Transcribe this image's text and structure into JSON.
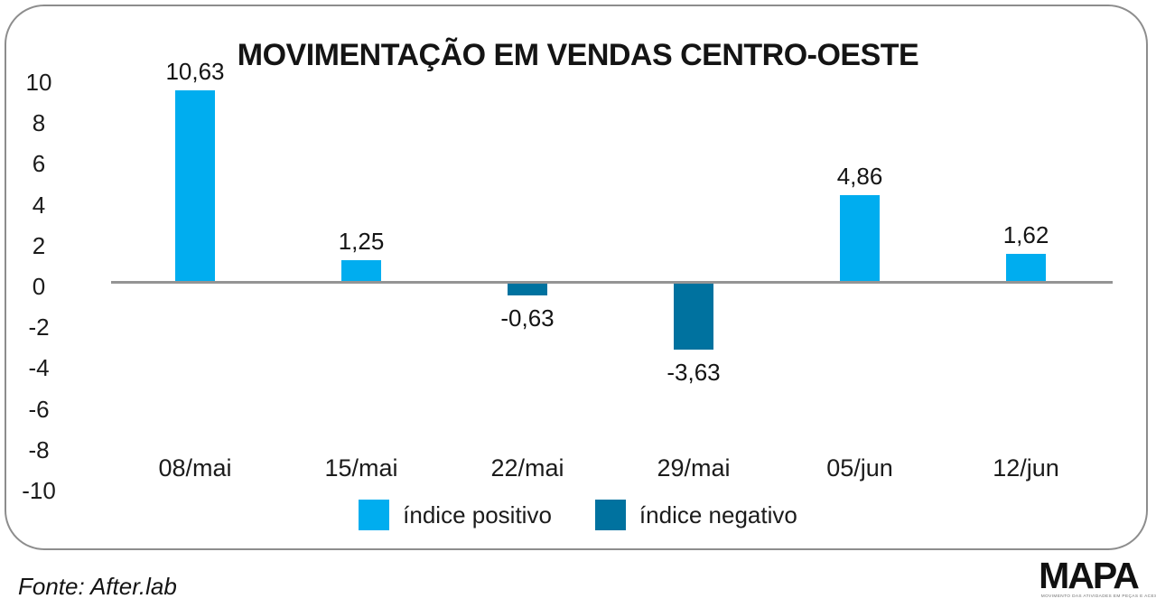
{
  "chart_data": {
    "type": "bar",
    "title": "MOVIMENTAÇÃO EM VENDAS CENTRO-OESTE",
    "categories": [
      "08/mai",
      "15/mai",
      "22/mai",
      "29/mai",
      "05/jun",
      "12/jun"
    ],
    "values": [
      10.63,
      1.25,
      -0.63,
      -3.63,
      4.86,
      1.62
    ],
    "value_labels": [
      "10,63",
      "1,25",
      "-0,63",
      "-3,63",
      "4,86",
      "1,62"
    ],
    "y_ticks": [
      "10",
      "8",
      "6",
      "4",
      "2",
      "0",
      "-2",
      "-4",
      "-6",
      "-8",
      "-10"
    ],
    "ylim": [
      -10,
      10
    ],
    "grid": false,
    "legend_position": "bottom",
    "legend": [
      {
        "label": "índice positivo",
        "type": "positive"
      },
      {
        "label": "índice negativo",
        "type": "negative"
      }
    ],
    "colors": {
      "positive": "#00ADEF",
      "negative": "#00729F",
      "axis_line": "#949494",
      "frame_border": "#8D8D8D",
      "text": "#1B1B1B"
    }
  },
  "footer": {
    "source": "Fonte: After.lab",
    "brand": "MAPA",
    "brand_tagline": "MOVIMENTO DAS ATIVIDADES EM PEÇAS E ACESSÓRIOS"
  }
}
